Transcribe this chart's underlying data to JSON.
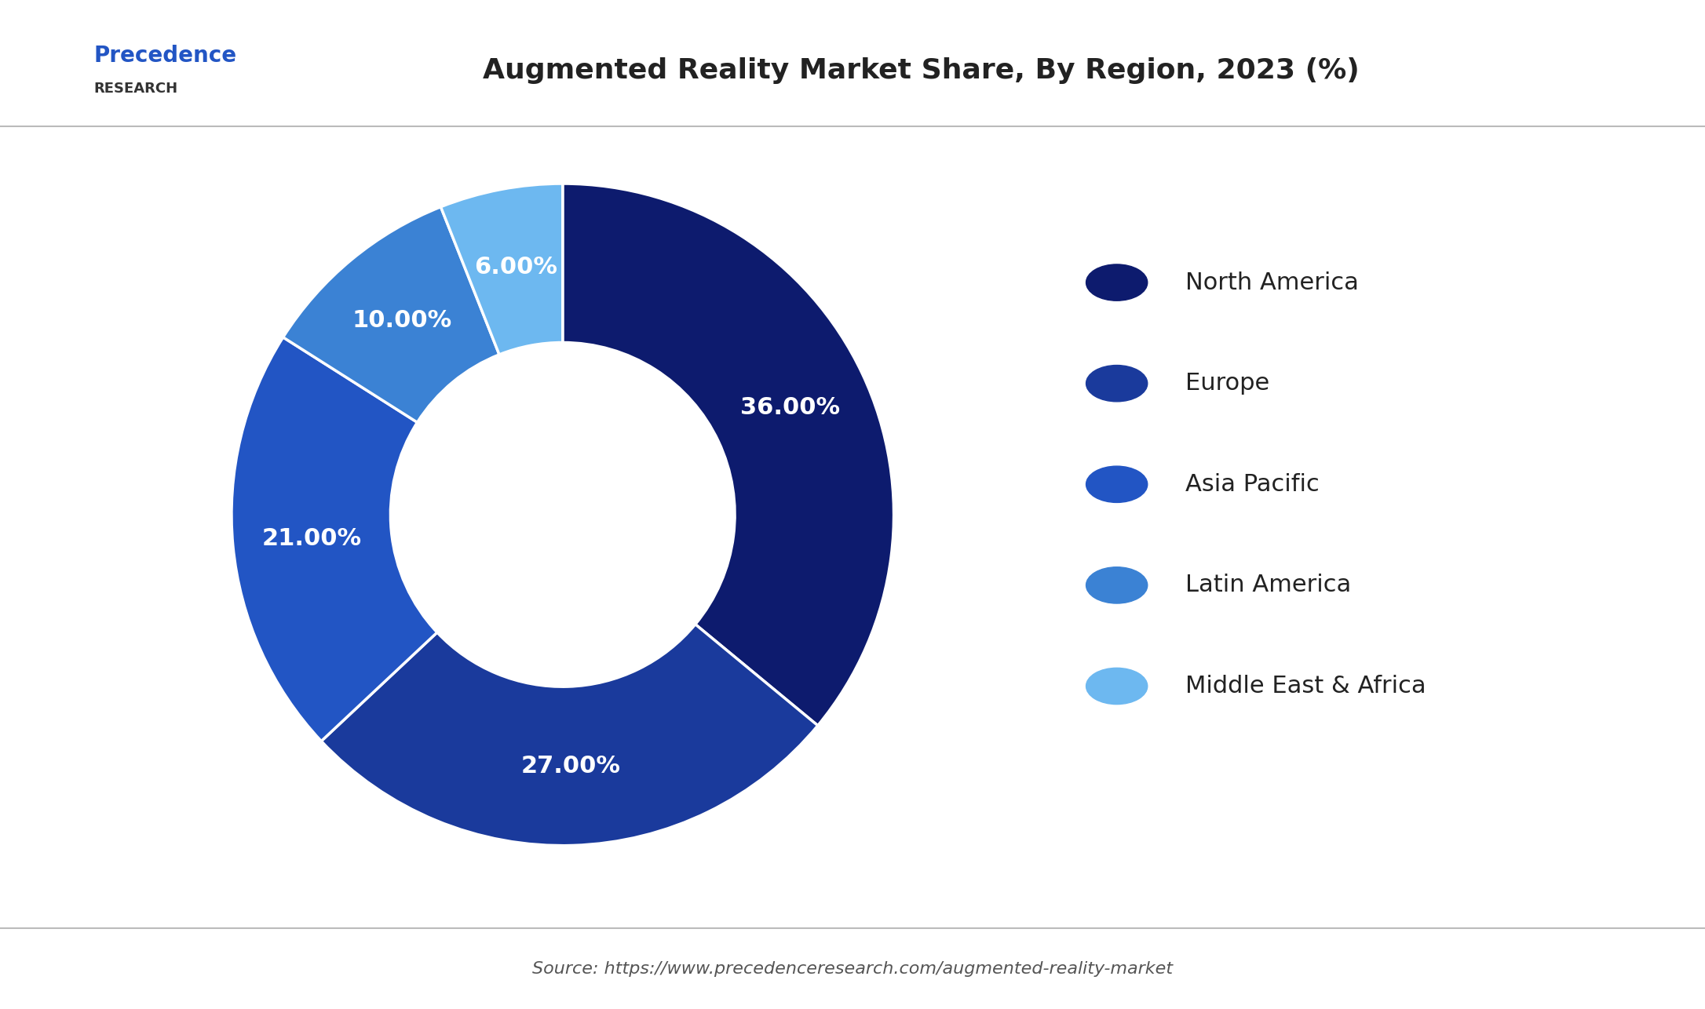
{
  "title": "Augmented Reality Market Share, By Region, 2023 (%)",
  "labels": [
    "North America",
    "Europe",
    "Asia Pacific",
    "Latin America",
    "Middle East & Africa"
  ],
  "values": [
    36.0,
    27.0,
    21.0,
    10.0,
    6.0
  ],
  "colors": [
    "#0d1b6e",
    "#1a3a9c",
    "#2255c4",
    "#3b82d4",
    "#6db8f0"
  ],
  "pct_labels": [
    "36.00%",
    "27.00%",
    "21.00%",
    "10.00%",
    "6.00%"
  ],
  "donut_ratio": 0.52,
  "background_color": "#ffffff",
  "source_text": "Source: https://www.precedenceresearch.com/augmented-reality-market",
  "logo_text_line1": "Precedence",
  "logo_text_line2": "RESEARCH"
}
